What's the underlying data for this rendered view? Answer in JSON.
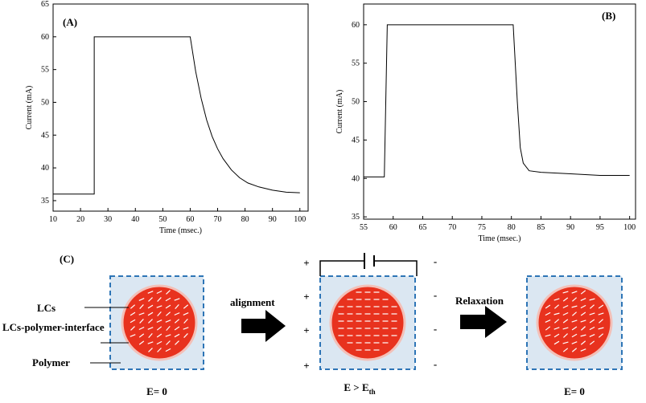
{
  "chart_data": [
    {
      "type": "line",
      "title": "(A)",
      "xlabel": "Time (msec.)",
      "ylabel": "Current (mA)",
      "color": "#000000",
      "x": [
        10,
        25,
        25,
        35,
        45,
        55,
        60,
        62,
        64,
        66,
        68,
        70,
        72,
        75,
        78,
        81,
        85,
        90,
        95,
        100
      ],
      "values": [
        36,
        36,
        60,
        60,
        60,
        60,
        60,
        54.7,
        50.6,
        47.3,
        44.8,
        42.9,
        41.4,
        39.7,
        38.5,
        37.7,
        37.1,
        36.6,
        36.3,
        36.2
      ],
      "xlim": [
        10,
        103
      ],
      "ylim": [
        33.4,
        65
      ],
      "xticks": [
        10,
        20,
        30,
        40,
        50,
        60,
        70,
        80,
        90,
        100
      ],
      "yticks": [
        35,
        40,
        45,
        50,
        55,
        60,
        65
      ]
    },
    {
      "type": "line",
      "title": "(B)",
      "xlabel": "Time (msec.)",
      "ylabel": "Current (mA)",
      "color": "#000000",
      "x": [
        55,
        58.5,
        59,
        65,
        70,
        75,
        80.3,
        81,
        81.5,
        82,
        83,
        85,
        90,
        95,
        100
      ],
      "values": [
        40.2,
        40.2,
        60,
        60,
        60,
        60,
        60,
        50,
        44,
        42,
        41,
        40.8,
        40.6,
        40.4,
        40.4
      ],
      "xlim": [
        55,
        101
      ],
      "ylim": [
        34.7,
        62.7
      ],
      "xticks": [
        55,
        60,
        65,
        70,
        75,
        80,
        85,
        90,
        95,
        100
      ],
      "yticks": [
        35,
        40,
        45,
        50,
        55,
        60
      ]
    }
  ],
  "diagram": {
    "panel_label": "(C)",
    "label_lcs": "LCs",
    "label_interface": "LCs-polymer-interface",
    "label_polymer": "Polymer",
    "arrow1": "alignment",
    "arrow2": "Relaxation",
    "state1": "E= 0",
    "state2_main": "E > E",
    "state2_sub": "th",
    "state3": "E= 0",
    "plus": "+",
    "minus": "-"
  }
}
